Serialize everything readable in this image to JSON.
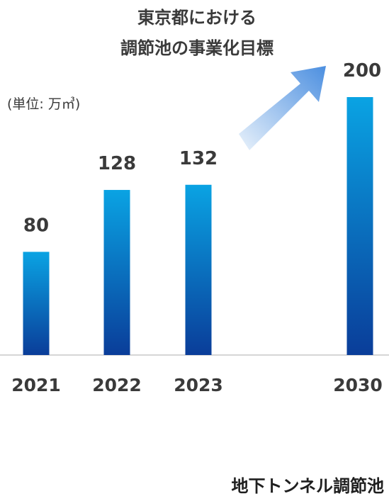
{
  "chart_data": {
    "type": "bar",
    "title_lines": [
      "東京都における",
      "調節池の事業化目標"
    ],
    "unit": "(単位: 万㎥)",
    "categories": [
      "2021",
      "2022",
      "2023",
      "2030"
    ],
    "values": [
      80,
      128,
      132,
      200
    ],
    "ylim": [
      0,
      200
    ],
    "grid": false,
    "caption": "地下トンネル調節池",
    "colors": {
      "bar_top": "#0aa3e3",
      "bar_bottom": "#0a3d99",
      "arrow_start": "#e9f2fb",
      "arrow_end": "#4c8fe0",
      "axis": "#c8c8c8",
      "text": "#3a3a3a"
    }
  }
}
